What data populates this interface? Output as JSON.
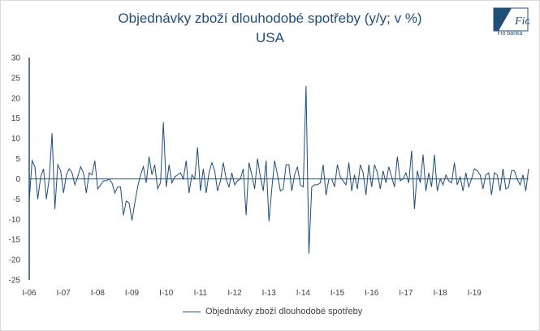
{
  "chart_data": {
    "type": "line",
    "title": "Objednávky zboží dlouhodobé spotřeby (y/y; v %)",
    "subtitle": "USA",
    "logo_text": "Fio banka",
    "ylim": [
      -25,
      30
    ],
    "y_ticks": [
      30,
      25,
      20,
      15,
      10,
      5,
      0,
      -5,
      -10,
      -15,
      -20,
      -25
    ],
    "x_tick_labels": [
      "I-06",
      "I-07",
      "I-08",
      "I-09",
      "I-10",
      "I-11",
      "I-12",
      "I-13",
      "I-14",
      "I-15",
      "I-16",
      "I-17",
      "I-18",
      "I-19"
    ],
    "grid": false,
    "legend_position": "bottom",
    "series": [
      {
        "name": "Objednávky zboží dlouhodobé spotřeby",
        "color": "#1f4e79",
        "values": [
          -5.5,
          4.5,
          3.0,
          -5.0,
          0.5,
          2.5,
          -5.0,
          0.0,
          11.3,
          -7.5,
          3.5,
          2.0,
          -3.5,
          1.0,
          2.5,
          1.5,
          -1.5,
          0.5,
          3.0,
          1.5,
          -3.5,
          1.5,
          1.0,
          4.5,
          -2.5,
          -1.5,
          -0.5,
          -0.5,
          0.0,
          -1.0,
          -3.5,
          -2.0,
          -2.0,
          -9.0,
          -5.5,
          -6.0,
          -10.3,
          -6.0,
          -2.0,
          1.0,
          3.0,
          -1.0,
          5.5,
          1.0,
          3.5,
          -2.5,
          -1.0,
          14.0,
          -2.0,
          3.5,
          -1.0,
          0.5,
          1.0,
          1.5,
          0.0,
          4.5,
          -3.5,
          1.0,
          0.0,
          7.8,
          -3.0,
          2.5,
          -3.5,
          1.5,
          4.0,
          2.0,
          -3.0,
          -0.5,
          4.0,
          0.0,
          -2.0,
          1.5,
          -1.5,
          -0.5,
          0.0,
          2.5,
          -9.0,
          4.0,
          1.0,
          -2.5,
          5.0,
          0.5,
          -3.0,
          4.5,
          -10.5,
          -2.5,
          4.5,
          1.0,
          -3.0,
          -2.5,
          3.5,
          3.5,
          -3.0,
          1.0,
          3.0,
          -1.5,
          -2.0,
          23.0,
          -18.5,
          -2.0,
          -1.5,
          -1.5,
          -1.0,
          3.5,
          -4.0,
          0.0,
          0.0,
          -2.0,
          3.5,
          0.5,
          -0.5,
          -1.5,
          4.0,
          -3.0,
          1.0,
          -2.5,
          3.5,
          1.5,
          -4.0,
          3.5,
          -2.0,
          3.5,
          1.5,
          -2.5,
          2.0,
          -1.0,
          3.0,
          0.5,
          -2.0,
          5.5,
          -0.5,
          0.0,
          1.5,
          -1.0,
          7.0,
          -7.5,
          2.0,
          -1.0,
          6.0,
          -3.0,
          1.5,
          -2.0,
          6.0,
          -3.0,
          0.0,
          -1.5,
          1.0,
          -0.5,
          -1.0,
          4.0,
          -1.5,
          0.5,
          -3.0,
          1.5,
          -2.0,
          0.0,
          2.5,
          2.0,
          1.0,
          -2.5,
          1.0,
          1.5,
          -4.0,
          1.5,
          1.0,
          -3.0,
          2.5,
          -2.5,
          -2.0,
          2.0,
          2.0,
          0.0,
          -1.5,
          1.0,
          -3.0,
          2.5
        ]
      }
    ]
  }
}
